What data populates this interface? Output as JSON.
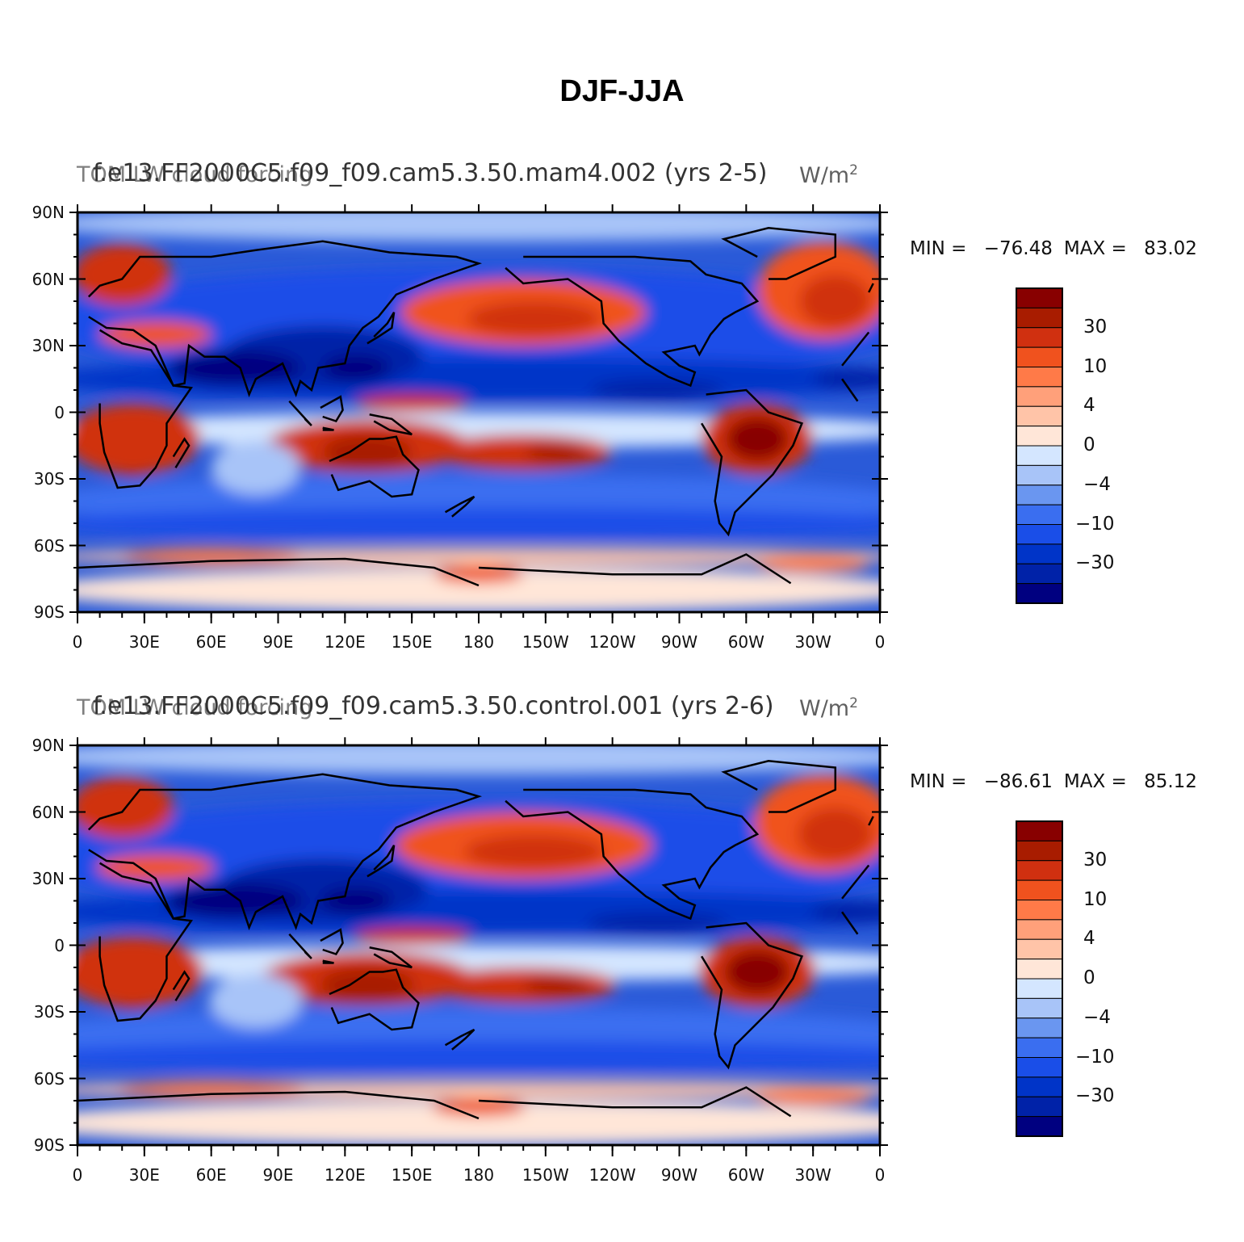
{
  "title": "DJF-JJA",
  "colors": {
    "scale": [
      "#000080",
      "#0022a8",
      "#0034c8",
      "#1a4ee8",
      "#3a6ef0",
      "#6a96f0",
      "#a8c4f8",
      "#d4e6ff",
      "#ffe6d8",
      "#ffc4a8",
      "#ffa07a",
      "#ff7a48",
      "#f0521e",
      "#d03010",
      "#a81c00",
      "#880000"
    ],
    "ocean_bg": "#2a5ad8"
  },
  "axes": {
    "y_ticks": [
      "90N",
      "60N",
      "30N",
      "0",
      "30S",
      "60S",
      "90S"
    ],
    "x_ticks": [
      "0",
      "30E",
      "60E",
      "90E",
      "120E",
      "150E",
      "180",
      "150W",
      "120W",
      "90W",
      "60W",
      "30W",
      "0"
    ]
  },
  "colorbar": {
    "labels": [
      "30",
      "10",
      "4",
      "0",
      "−4",
      "−10",
      "−30"
    ]
  },
  "panels": [
    {
      "case": "f.e13.FF2000C5.f09_f09.cam5.3.50.mam4.002 (yrs 2-5)",
      "variable": "TOM LW cloud forcing",
      "units": "W/m",
      "units_sup": "2",
      "min_label": "MIN = ",
      "min": "−76.48",
      "max_label": "MAX = ",
      "max": "83.02"
    },
    {
      "case": "f.e13.FF2000C5.f09_f09.cam5.3.50.control.001 (yrs 2-6)",
      "variable": "TOM LW cloud forcing",
      "units": "W/m",
      "units_sup": "2",
      "min_label": "MIN = ",
      "min": "−86.61",
      "max_label": "MAX = ",
      "max": "85.12"
    }
  ]
}
